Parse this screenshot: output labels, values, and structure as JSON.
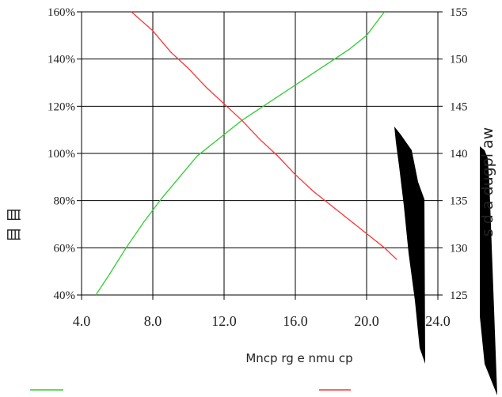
{
  "chart_data": {
    "type": "line",
    "xlabel": "Mncp rg e nmu cp",
    "ylabel_left": "目 目",
    "ylabel_right": "s d a dugpl aw",
    "x": {
      "min": 4.0,
      "max": 24.0,
      "ticks": [
        "4.0",
        "8.0",
        "12.0",
        "16.0",
        "20.0",
        "24.0"
      ]
    },
    "y_left": {
      "min": 40,
      "max": 160,
      "ticks": [
        "40%",
        "60%",
        "80%",
        "100%",
        "120%",
        "140%",
        "160%"
      ]
    },
    "y_right": {
      "min": 125,
      "max": 155,
      "ticks": [
        "125",
        "130",
        "135",
        "140",
        "145",
        "150",
        "155"
      ]
    },
    "grid": true,
    "legend_placement": "bottom",
    "series": [
      {
        "axis": "left",
        "color": "#33cc33",
        "points": [
          [
            4.8,
            40
          ],
          [
            5.5,
            48
          ],
          [
            6.5,
            60
          ],
          [
            7.5,
            71
          ],
          [
            8.5,
            81
          ],
          [
            9.5,
            90
          ],
          [
            10.5,
            99
          ],
          [
            12.0,
            108
          ],
          [
            13.0,
            114
          ],
          [
            14.0,
            119
          ],
          [
            15.0,
            124
          ],
          [
            16.0,
            129
          ],
          [
            17.0,
            134
          ],
          [
            18.0,
            139
          ],
          [
            19.0,
            144
          ],
          [
            20.0,
            150
          ],
          [
            21.0,
            160
          ]
        ]
      },
      {
        "axis": "left",
        "color": "#ff3333",
        "points": [
          [
            6.8,
            160
          ],
          [
            8.0,
            152
          ],
          [
            9.0,
            143
          ],
          [
            10.0,
            136
          ],
          [
            11.0,
            128
          ],
          [
            12.0,
            121
          ],
          [
            13.0,
            114
          ],
          [
            14.0,
            106
          ],
          [
            15.0,
            99
          ],
          [
            16.0,
            91
          ],
          [
            17.0,
            84
          ],
          [
            18.0,
            78
          ],
          [
            19.0,
            72
          ],
          [
            20.0,
            66
          ],
          [
            21.0,
            60
          ],
          [
            21.7,
            55
          ]
        ]
      }
    ]
  }
}
